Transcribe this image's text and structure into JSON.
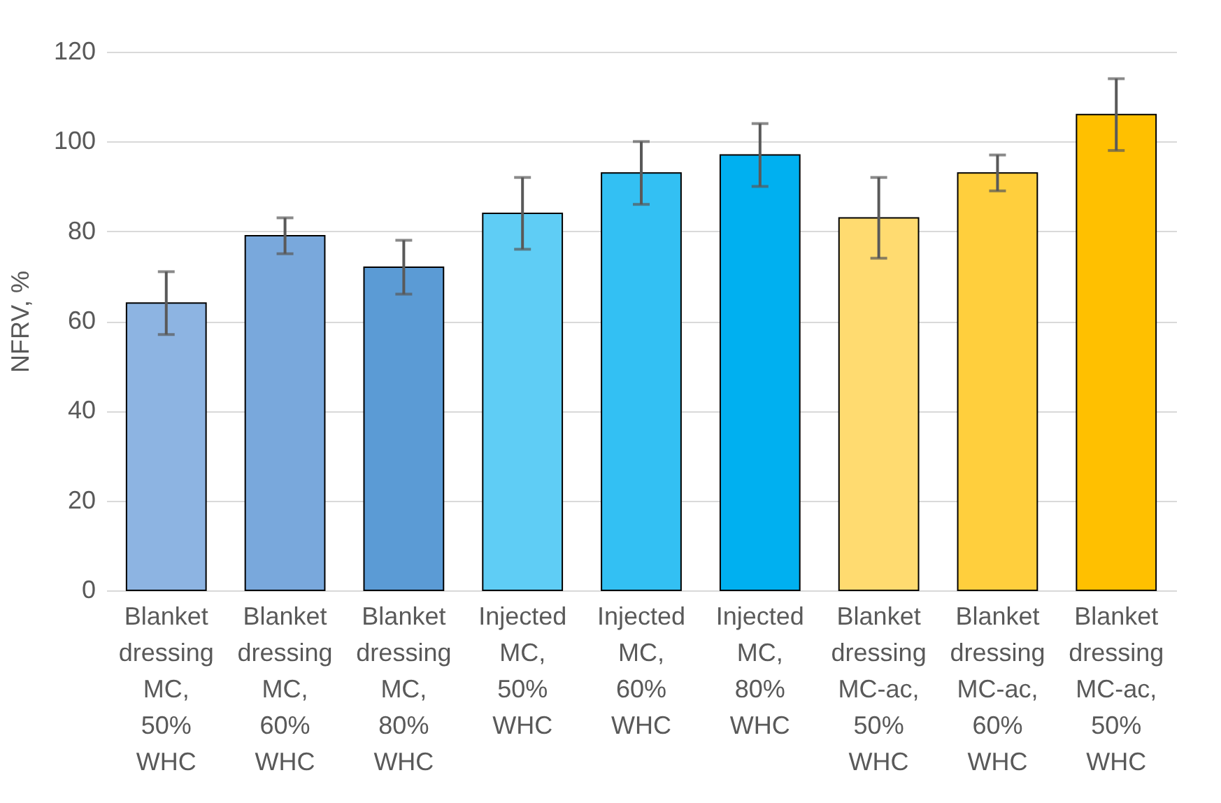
{
  "chart_data": {
    "type": "bar",
    "ylabel": "NFRV, %",
    "categories": [
      "Blanket dressing MC, 50% WHC",
      "Blanket dressing MC, 60% WHC",
      "Blanket dressing MC, 80% WHC",
      "Injected MC, 50% WHC",
      "Injected MC, 60% WHC",
      "Injected MC, 80% WHC",
      "Blanket dressing MC-ac, 50% WHC",
      "Blanket dressing MC-ac, 60% WHC",
      "Blanket dressing MC-ac, 50% WHC"
    ],
    "values": [
      64,
      79,
      72,
      84,
      93,
      97,
      83,
      93,
      106
    ],
    "errors": [
      7,
      4,
      6,
      8,
      7,
      7,
      9,
      4,
      8
    ],
    "colors": [
      "#8db4e2",
      "#79a8dc",
      "#5b9bd5",
      "#5fcdf5",
      "#33c0f3",
      "#00b0f0",
      "#ffdb70",
      "#ffcf3d",
      "#ffc000"
    ],
    "ylim": [
      0,
      120
    ],
    "yticks": [
      0,
      20,
      40,
      60,
      80,
      100,
      120
    ],
    "grid": "y"
  }
}
